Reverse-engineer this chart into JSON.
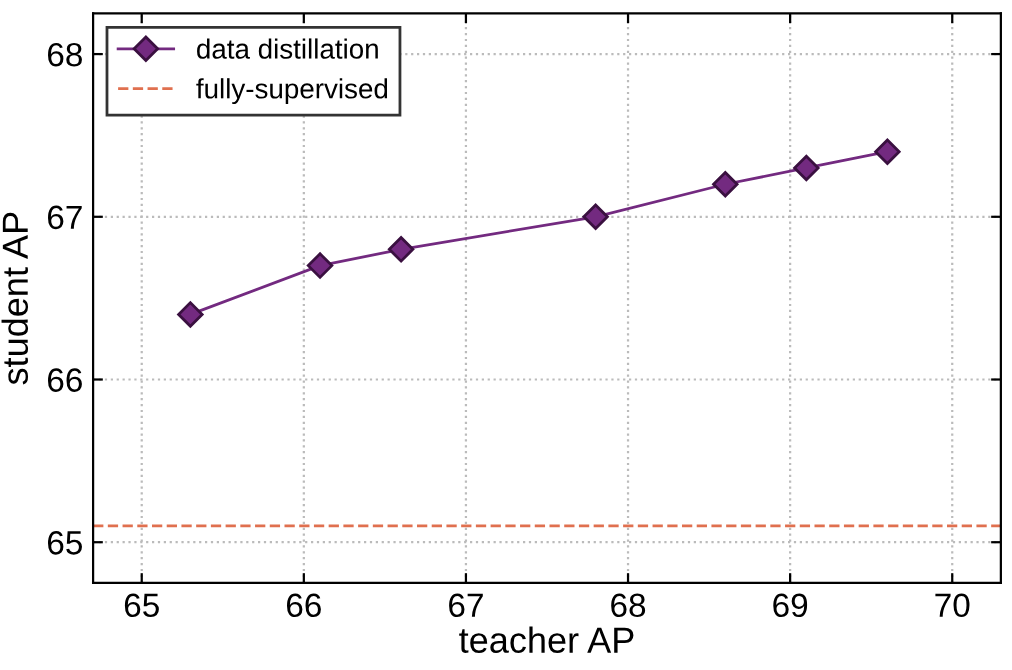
{
  "chart_data": {
    "type": "line",
    "xlabel": "teacher AP",
    "ylabel": "student AP",
    "x": [
      65.3,
      66.1,
      66.6,
      67.8,
      68.6,
      69.1,
      69.6
    ],
    "series": [
      {
        "name": "data distillation",
        "color": "#732a80",
        "values": [
          66.4,
          66.7,
          66.8,
          67.0,
          67.2,
          67.3,
          67.4
        ]
      }
    ],
    "ref_lines": [
      {
        "axis": "y",
        "value": 65.1,
        "label": "fully-supervised",
        "color": "#e0704f",
        "line_style": "dashed"
      }
    ],
    "xlim": [
      64.7,
      70.3
    ],
    "ylim": [
      64.75,
      68.25
    ],
    "xticks": [
      65,
      66,
      67,
      68,
      69,
      70
    ],
    "yticks": [
      65,
      66,
      67,
      68
    ],
    "grid": true,
    "legend": "top left",
    "marker": "diamond",
    "line_style": "solid"
  }
}
